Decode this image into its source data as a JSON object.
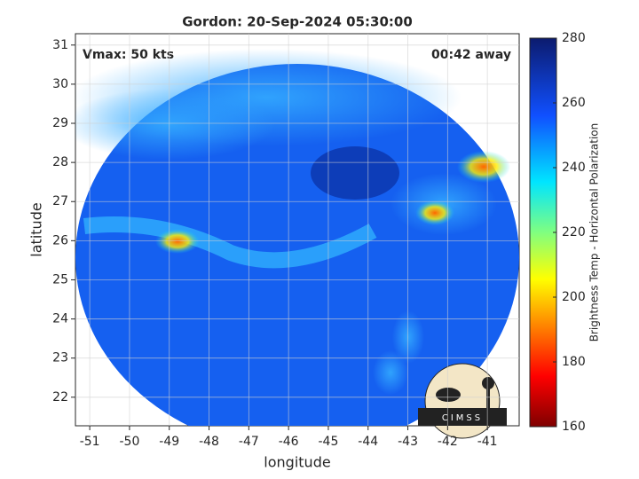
{
  "chart_data": {
    "type": "image",
    "title": "Gordon: 20-Sep-2024 05:30:00",
    "annotations": [
      "Vmax: 50 kts",
      "00:42 away"
    ],
    "x_label": "longitude",
    "y_label": "latitude",
    "xlim": [
      -51.36,
      -40.2
    ],
    "ylim": [
      21.27,
      31.29
    ],
    "xticks": [
      -51,
      -50,
      -49,
      -48,
      -47,
      -46,
      -45,
      -44,
      -43,
      -42,
      -41
    ],
    "yticks": [
      22,
      23,
      24,
      25,
      26,
      27,
      28,
      29,
      30,
      31
    ],
    "grid": true,
    "colorbar": {
      "label": "Brightness Temp - Horizontal Polarization",
      "lim": [
        160,
        280
      ],
      "ticks": [
        160,
        180,
        200,
        220,
        240,
        260,
        280
      ]
    },
    "logo": "CIMSS"
  }
}
